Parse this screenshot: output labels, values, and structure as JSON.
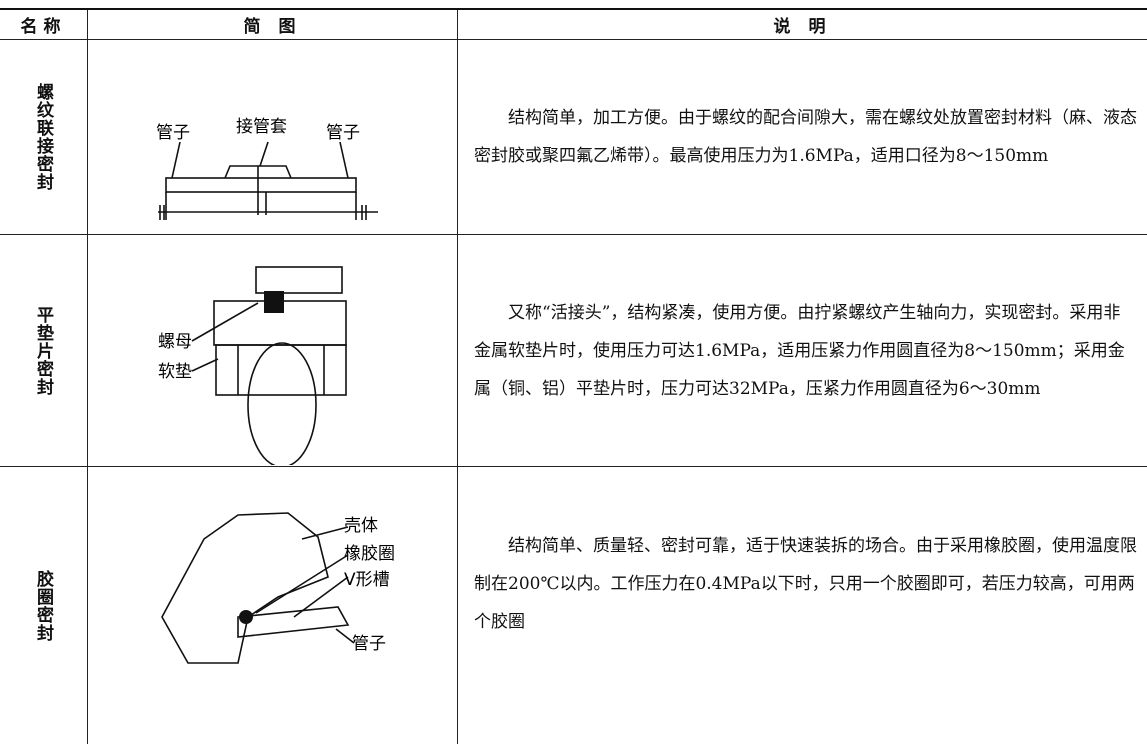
{
  "header": {
    "name": "名称",
    "diagram": "简 图",
    "description": "说 明"
  },
  "rows": [
    {
      "name": "螺纹联接密封",
      "labels": [
        "管子",
        "接管套",
        "管子"
      ],
      "description": "结构简单，加工方便。由于螺纹的配合间隙大，需在螺纹处放置密封材料（麻、液态密封胶或聚四氟乙烯带）。最高使用压力为1.6MPa，适用口径为8～150mm"
    },
    {
      "name": "平垫片密封",
      "labels": [
        "螺母",
        "软垫"
      ],
      "description": "又称“活接头”，结构紧凑，使用方便。由拧紧螺纹产生轴向力，实现密封。采用非金属软垫片时，使用压力可达1.6MPa，适用压紧力作用圆直径为8～150mm；采用金属（铜、铝）平垫片时，压力可达32MPa，压紧力作用圆直径为6～30mm"
    },
    {
      "name": "胶圈密封",
      "labels": [
        "壳体",
        "橡胶圈",
        "V形槽",
        "管子"
      ],
      "description": "结构简单、质量轻、密封可靠，适于快速装拆的场合。由于采用橡胶圈，使用温度限制在200℃以内。工作压力在0.4MPa以下时，只用一个胶圈即可，若压力较高，可用两个胶圈"
    }
  ]
}
